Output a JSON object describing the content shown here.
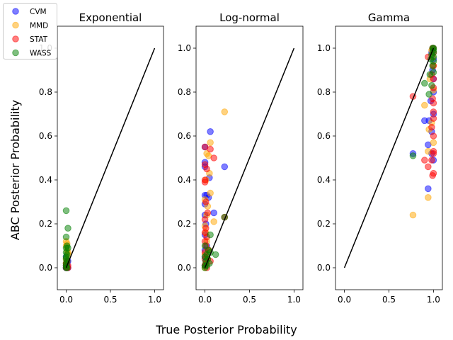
{
  "figure": {
    "xlabel": "True Posterior Probability",
    "ylabel": "ABC Posterior Probability",
    "legend": {
      "placement": "top-left",
      "entries": [
        {
          "name": "CVM",
          "color": "#0000ff"
        },
        {
          "name": "MMD",
          "color": "#ffa500"
        },
        {
          "name": "STAT",
          "color": "#ff0000"
        },
        {
          "name": "WASS",
          "color": "#008000"
        }
      ]
    }
  },
  "chart_data": [
    {
      "type": "scatter",
      "title": "Exponential",
      "xlim": [
        -0.1,
        1.1
      ],
      "ylim": [
        -0.1,
        1.1
      ],
      "xticks": [
        "0.0",
        "0.5",
        "1.0"
      ],
      "yticks": [
        "0.0",
        "0.2",
        "0.4",
        "0.6",
        "0.8",
        "1.0"
      ],
      "reference_line": [
        [
          0,
          0
        ],
        [
          1,
          1
        ]
      ],
      "series": [
        {
          "name": "CVM",
          "points": [
            [
              0.0,
              0.0
            ],
            [
              0.0,
              0.01
            ],
            [
              0.01,
              0.02
            ],
            [
              0.02,
              0.03
            ],
            [
              0.0,
              0.05
            ],
            [
              0.01,
              0.01
            ],
            [
              0.0,
              0.0
            ],
            [
              0.02,
              0.0
            ]
          ]
        },
        {
          "name": "MMD",
          "points": [
            [
              0.0,
              0.12
            ],
            [
              0.0,
              0.1
            ],
            [
              0.01,
              0.11
            ],
            [
              0.02,
              0.06
            ],
            [
              0.0,
              0.04
            ],
            [
              0.01,
              0.08
            ],
            [
              0.0,
              0.02
            ],
            [
              0.02,
              0.07
            ]
          ]
        },
        {
          "name": "STAT",
          "points": [
            [
              0.0,
              0.0
            ],
            [
              0.01,
              0.0
            ],
            [
              0.02,
              0.01
            ],
            [
              0.0,
              0.02
            ],
            [
              0.01,
              0.03
            ],
            [
              0.02,
              0.0
            ],
            [
              0.0,
              0.01
            ]
          ]
        },
        {
          "name": "WASS",
          "points": [
            [
              0.0,
              0.26
            ],
            [
              0.02,
              0.18
            ],
            [
              0.0,
              0.14
            ],
            [
              0.01,
              0.1
            ],
            [
              0.0,
              0.09
            ],
            [
              0.02,
              0.09
            ],
            [
              0.0,
              0.07
            ],
            [
              0.01,
              0.06
            ],
            [
              0.0,
              0.05
            ],
            [
              0.0,
              0.04
            ],
            [
              0.01,
              0.03
            ],
            [
              0.0,
              0.02
            ],
            [
              0.0,
              0.01
            ],
            [
              0.0,
              0.0
            ],
            [
              0.01,
              0.0
            ]
          ]
        }
      ]
    },
    {
      "type": "scatter",
      "title": "Log-normal",
      "xlim": [
        -0.1,
        1.1
      ],
      "ylim": [
        -0.1,
        1.1
      ],
      "xticks": [
        "0.0",
        "0.5",
        "1.0"
      ],
      "yticks": [
        "0.0",
        "0.2",
        "0.4",
        "0.6",
        "0.8",
        "1.0"
      ],
      "reference_line": [
        [
          0,
          0
        ],
        [
          1,
          1
        ]
      ],
      "series": [
        {
          "name": "CVM",
          "points": [
            [
              0.06,
              0.62
            ],
            [
              0.0,
              0.55
            ],
            [
              0.0,
              0.48
            ],
            [
              0.0,
              0.46
            ],
            [
              0.22,
              0.46
            ],
            [
              0.05,
              0.41
            ],
            [
              0.0,
              0.33
            ],
            [
              0.02,
              0.33
            ],
            [
              0.04,
              0.32
            ],
            [
              0.0,
              0.29
            ],
            [
              0.1,
              0.25
            ],
            [
              0.0,
              0.24
            ],
            [
              0.01,
              0.2
            ],
            [
              0.0,
              0.15
            ],
            [
              0.02,
              0.1
            ],
            [
              0.0,
              0.08
            ],
            [
              0.0,
              0.05
            ],
            [
              0.01,
              0.03
            ],
            [
              0.0,
              0.01
            ]
          ]
        },
        {
          "name": "MMD",
          "points": [
            [
              0.22,
              0.71
            ],
            [
              0.06,
              0.57
            ],
            [
              0.02,
              0.52
            ],
            [
              0.04,
              0.51
            ],
            [
              0.05,
              0.43
            ],
            [
              0.01,
              0.4
            ],
            [
              0.06,
              0.34
            ],
            [
              0.0,
              0.31
            ],
            [
              0.03,
              0.28
            ],
            [
              0.02,
              0.24
            ],
            [
              0.1,
              0.21
            ],
            [
              0.0,
              0.19
            ],
            [
              0.01,
              0.16
            ],
            [
              0.02,
              0.12
            ],
            [
              0.04,
              0.08
            ],
            [
              0.0,
              0.06
            ],
            [
              0.03,
              0.04
            ],
            [
              0.01,
              0.02
            ],
            [
              0.0,
              0.0
            ]
          ]
        },
        {
          "name": "STAT",
          "points": [
            [
              0.0,
              0.55
            ],
            [
              0.06,
              0.54
            ],
            [
              0.1,
              0.5
            ],
            [
              0.0,
              0.47
            ],
            [
              0.02,
              0.45
            ],
            [
              0.0,
              0.4
            ],
            [
              0.0,
              0.39
            ],
            [
              0.01,
              0.3
            ],
            [
              0.03,
              0.25
            ],
            [
              0.22,
              0.23
            ],
            [
              0.0,
              0.22
            ],
            [
              0.01,
              0.18
            ],
            [
              0.0,
              0.16
            ],
            [
              0.02,
              0.14
            ],
            [
              0.0,
              0.12
            ],
            [
              0.01,
              0.1
            ],
            [
              0.04,
              0.08
            ],
            [
              0.0,
              0.07
            ],
            [
              0.02,
              0.05
            ],
            [
              0.0,
              0.04
            ],
            [
              0.06,
              0.03
            ],
            [
              0.01,
              0.02
            ],
            [
              0.0,
              0.01
            ],
            [
              0.02,
              0.0
            ]
          ]
        },
        {
          "name": "WASS",
          "points": [
            [
              0.22,
              0.23
            ],
            [
              0.06,
              0.15
            ],
            [
              0.0,
              0.1
            ],
            [
              0.04,
              0.08
            ],
            [
              0.06,
              0.07
            ],
            [
              0.02,
              0.06
            ],
            [
              0.12,
              0.06
            ],
            [
              0.0,
              0.05
            ],
            [
              0.03,
              0.04
            ],
            [
              0.01,
              0.03
            ],
            [
              0.05,
              0.02
            ],
            [
              0.0,
              0.01
            ],
            [
              0.02,
              0.01
            ],
            [
              0.0,
              0.0
            ]
          ]
        }
      ]
    },
    {
      "type": "scatter",
      "title": "Gamma",
      "xlim": [
        -0.1,
        1.1
      ],
      "ylim": [
        -0.1,
        1.1
      ],
      "xticks": [
        "0.0",
        "0.5",
        "1.0"
      ],
      "yticks": [
        "0.0",
        "0.2",
        "0.4",
        "0.6",
        "0.8",
        "1.0"
      ],
      "reference_line": [
        [
          0,
          0
        ],
        [
          1,
          1
        ]
      ],
      "series": [
        {
          "name": "CVM",
          "points": [
            [
              0.94,
              0.36
            ],
            [
              0.77,
              0.52
            ],
            [
              0.94,
              0.56
            ],
            [
              1.0,
              0.49
            ],
            [
              0.98,
              0.52
            ],
            [
              0.9,
              0.67
            ],
            [
              0.98,
              0.62
            ],
            [
              0.95,
              0.67
            ],
            [
              1.0,
              0.7
            ],
            [
              0.97,
              0.76
            ],
            [
              1.0,
              0.8
            ],
            [
              1.0,
              0.86
            ],
            [
              0.99,
              0.9
            ],
            [
              1.0,
              0.95
            ],
            [
              1.0,
              1.0
            ],
            [
              0.98,
              0.98
            ]
          ]
        },
        {
          "name": "MMD",
          "points": [
            [
              0.77,
              0.24
            ],
            [
              0.94,
              0.32
            ],
            [
              0.94,
              0.53
            ],
            [
              1.0,
              0.57
            ],
            [
              0.95,
              0.63
            ],
            [
              0.98,
              0.66
            ],
            [
              0.9,
              0.74
            ],
            [
              1.0,
              0.81
            ],
            [
              0.96,
              0.86
            ],
            [
              1.0,
              0.92
            ],
            [
              0.99,
              0.96
            ],
            [
              1.0,
              1.0
            ],
            [
              0.98,
              0.99
            ]
          ]
        },
        {
          "name": "STAT",
          "points": [
            [
              1.0,
              0.43
            ],
            [
              0.99,
              0.42
            ],
            [
              0.94,
              0.46
            ],
            [
              0.9,
              0.49
            ],
            [
              0.98,
              0.49
            ],
            [
              1.0,
              0.52
            ],
            [
              1.0,
              0.53
            ],
            [
              0.77,
              0.78
            ],
            [
              1.0,
              0.6
            ],
            [
              0.98,
              0.64
            ],
            [
              1.0,
              0.68
            ],
            [
              1.0,
              0.71
            ],
            [
              1.0,
              0.75
            ],
            [
              0.99,
              0.77
            ],
            [
              1.0,
              0.82
            ],
            [
              1.0,
              0.86
            ],
            [
              0.98,
              0.88
            ],
            [
              1.0,
              0.92
            ],
            [
              0.94,
              0.96
            ],
            [
              1.0,
              0.98
            ],
            [
              0.99,
              1.0
            ]
          ]
        },
        {
          "name": "WASS",
          "points": [
            [
              0.77,
              0.51
            ],
            [
              0.9,
              0.84
            ],
            [
              0.95,
              0.79
            ],
            [
              0.98,
              0.83
            ],
            [
              0.96,
              0.88
            ],
            [
              1.0,
              0.89
            ],
            [
              0.99,
              0.92
            ],
            [
              1.0,
              0.94
            ],
            [
              0.97,
              0.95
            ],
            [
              1.0,
              0.96
            ],
            [
              0.98,
              0.97
            ],
            [
              1.0,
              0.98
            ],
            [
              1.0,
              0.99
            ],
            [
              0.99,
              1.0
            ],
            [
              1.0,
              1.0
            ]
          ]
        }
      ]
    }
  ]
}
